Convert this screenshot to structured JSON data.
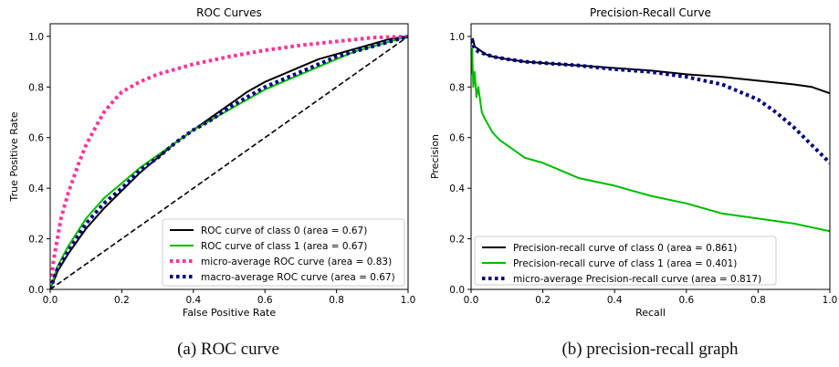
{
  "captions": [
    "(a) ROC curve",
    "(b) precision-recall graph"
  ],
  "chart_data": [
    {
      "type": "line",
      "title": "ROC Curves",
      "xlabel": "False Positive Rate",
      "ylabel": "True Positive Rate",
      "xlim": [
        0.0,
        1.0
      ],
      "ylim": [
        0.0,
        1.05
      ],
      "xticks": [
        "0.0",
        "0.2",
        "0.4",
        "0.6",
        "0.8",
        "1.0"
      ],
      "yticks": [
        "0.0",
        "0.2",
        "0.4",
        "0.6",
        "0.8",
        "1.0"
      ],
      "grid": false,
      "legend_position": "lower-right",
      "series": [
        {
          "name": "ROC curve of class 0 (area = 0.67)",
          "color": "#000000",
          "style": "solid",
          "x": [
            0,
            0.02,
            0.05,
            0.1,
            0.15,
            0.2,
            0.25,
            0.3,
            0.35,
            0.4,
            0.45,
            0.5,
            0.55,
            0.6,
            0.65,
            0.7,
            0.75,
            0.8,
            0.85,
            0.9,
            0.95,
            1.0
          ],
          "y": [
            0,
            0.07,
            0.14,
            0.24,
            0.32,
            0.39,
            0.46,
            0.52,
            0.58,
            0.63,
            0.68,
            0.73,
            0.78,
            0.82,
            0.85,
            0.88,
            0.91,
            0.93,
            0.95,
            0.97,
            0.99,
            1.0
          ]
        },
        {
          "name": "ROC curve of class 1 (area = 0.67)",
          "color": "#00bb00",
          "style": "solid",
          "x": [
            0,
            0.02,
            0.05,
            0.1,
            0.15,
            0.2,
            0.25,
            0.3,
            0.35,
            0.4,
            0.45,
            0.5,
            0.55,
            0.6,
            0.65,
            0.7,
            0.75,
            0.8,
            0.85,
            0.9,
            0.95,
            1.0
          ],
          "y": [
            0,
            0.09,
            0.17,
            0.28,
            0.36,
            0.42,
            0.48,
            0.53,
            0.58,
            0.63,
            0.67,
            0.71,
            0.75,
            0.79,
            0.82,
            0.85,
            0.88,
            0.91,
            0.94,
            0.96,
            0.98,
            1.0
          ]
        },
        {
          "name": "micro-average ROC curve (area = 0.83)",
          "color": "#ff3399",
          "style": "dotted",
          "x": [
            0,
            0.01,
            0.03,
            0.05,
            0.08,
            0.1,
            0.13,
            0.15,
            0.18,
            0.2,
            0.25,
            0.3,
            0.4,
            0.5,
            0.6,
            0.7,
            0.8,
            0.9,
            1.0
          ],
          "y": [
            0,
            0.12,
            0.28,
            0.38,
            0.5,
            0.57,
            0.65,
            0.7,
            0.75,
            0.78,
            0.82,
            0.85,
            0.89,
            0.92,
            0.945,
            0.965,
            0.98,
            0.995,
            1.0
          ]
        },
        {
          "name": "macro-average ROC curve (area = 0.67)",
          "color": "#000080",
          "style": "dotted",
          "x": [
            0,
            0.02,
            0.05,
            0.1,
            0.15,
            0.2,
            0.25,
            0.3,
            0.35,
            0.4,
            0.45,
            0.5,
            0.55,
            0.6,
            0.65,
            0.7,
            0.75,
            0.8,
            0.85,
            0.9,
            0.95,
            1.0
          ],
          "y": [
            0,
            0.08,
            0.15,
            0.26,
            0.34,
            0.4,
            0.47,
            0.52,
            0.58,
            0.63,
            0.67,
            0.72,
            0.76,
            0.8,
            0.83,
            0.86,
            0.89,
            0.92,
            0.94,
            0.96,
            0.98,
            1.0
          ]
        },
        {
          "name": "",
          "color": "#000000",
          "style": "dashed",
          "x": [
            0,
            1
          ],
          "y": [
            0,
            1
          ]
        }
      ]
    },
    {
      "type": "line",
      "title": "Precision-Recall Curve",
      "xlabel": "Recall",
      "ylabel": "Precision",
      "xlim": [
        0.0,
        1.0
      ],
      "ylim": [
        0.0,
        1.05
      ],
      "xticks": [
        "0.0",
        "0.2",
        "0.4",
        "0.6",
        "0.8",
        "1.0"
      ],
      "yticks": [
        "0.0",
        "0.2",
        "0.4",
        "0.6",
        "0.8",
        "1.0"
      ],
      "grid": false,
      "legend_position": "lower-left",
      "series": [
        {
          "name": "Precision-recall curve of class 0 (area = 0.861)",
          "color": "#000000",
          "style": "solid",
          "x": [
            0,
            0.005,
            0.01,
            0.02,
            0.04,
            0.06,
            0.1,
            0.15,
            0.2,
            0.3,
            0.4,
            0.5,
            0.6,
            0.7,
            0.8,
            0.9,
            0.95,
            1.0
          ],
          "y": [
            0.97,
            0.99,
            0.96,
            0.95,
            0.93,
            0.92,
            0.91,
            0.9,
            0.895,
            0.885,
            0.875,
            0.865,
            0.85,
            0.84,
            0.825,
            0.81,
            0.8,
            0.775
          ]
        },
        {
          "name": "Precision-recall curve of class 1 (area = 0.401)",
          "color": "#00bb00",
          "style": "solid",
          "x": [
            0,
            0.003,
            0.006,
            0.01,
            0.015,
            0.02,
            0.03,
            0.04,
            0.06,
            0.08,
            0.1,
            0.12,
            0.15,
            0.2,
            0.25,
            0.3,
            0.4,
            0.5,
            0.6,
            0.7,
            0.8,
            0.9,
            1.0
          ],
          "y": [
            0.85,
            0.95,
            0.8,
            0.86,
            0.76,
            0.8,
            0.7,
            0.67,
            0.62,
            0.59,
            0.57,
            0.55,
            0.52,
            0.5,
            0.47,
            0.44,
            0.41,
            0.37,
            0.34,
            0.3,
            0.28,
            0.26,
            0.23
          ]
        },
        {
          "name": "micro-average Precision-recall curve (area = 0.817)",
          "color": "#000080",
          "style": "dotted",
          "x": [
            0,
            0.005,
            0.01,
            0.02,
            0.04,
            0.06,
            0.1,
            0.15,
            0.2,
            0.3,
            0.4,
            0.5,
            0.6,
            0.7,
            0.75,
            0.8,
            0.85,
            0.9,
            0.95,
            1.0
          ],
          "y": [
            0.99,
            0.97,
            0.95,
            0.94,
            0.93,
            0.92,
            0.91,
            0.9,
            0.895,
            0.885,
            0.87,
            0.86,
            0.84,
            0.81,
            0.78,
            0.75,
            0.7,
            0.64,
            0.57,
            0.5
          ]
        }
      ]
    }
  ]
}
